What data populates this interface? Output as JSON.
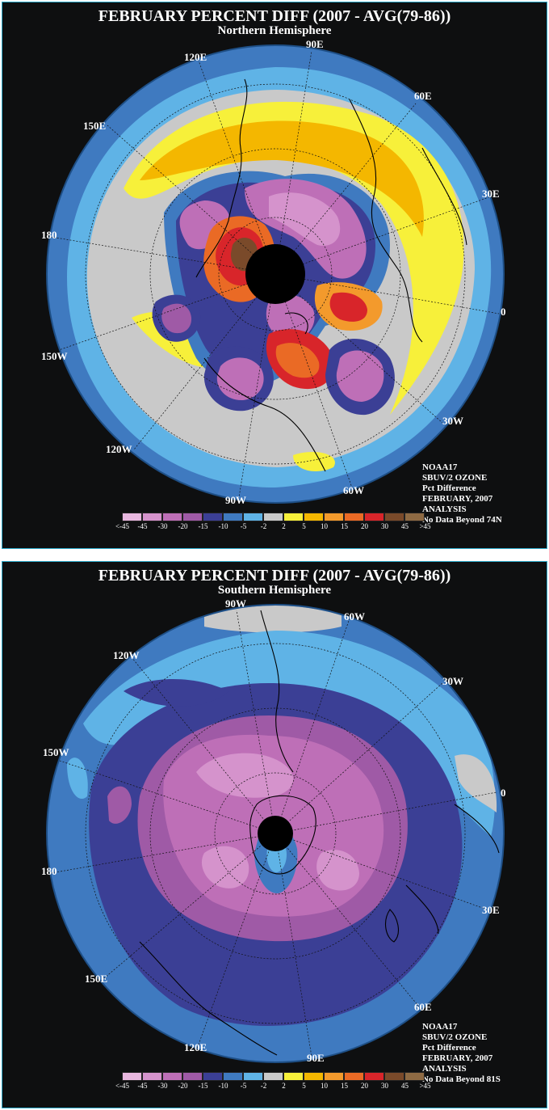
{
  "north": {
    "title": "FEBRUARY PERCENT DIFF (2007 - AVG(79-86))",
    "subtitle": "Northern Hemisphere",
    "lon_labels": {
      "l90e": "90E",
      "l60e": "60E",
      "l30e": "30E",
      "l0": "0",
      "l30w": "30W",
      "l60w": "60W",
      "l90w": "90W",
      "l120w": "120W",
      "l150w": "150W",
      "l180": "180",
      "l150e": "150E",
      "l120e": "120E"
    },
    "info": [
      "NOAA17",
      "SBUV/2 OZONE",
      "Pct Difference",
      "FEBRUARY, 2007",
      "ANALYSIS",
      "No Data Beyond 74N"
    ]
  },
  "south": {
    "title": "FEBRUARY PERCENT DIFF (2007 - AVG(79-86))",
    "subtitle": "Southern Hemisphere",
    "lon_labels": {
      "l90w": "90W",
      "l60w": "60W",
      "l30w": "30W",
      "l0": "0",
      "l30e": "30E",
      "l60e": "60E",
      "l90e": "90E",
      "l120e": "120E",
      "l150e": "150E",
      "l180": "180",
      "l150w": "150W",
      "l120w": "120W"
    },
    "info": [
      "NOAA17",
      "SBUV/2 OZONE",
      "Pct Difference",
      "FEBRUARY, 2007",
      "ANALYSIS",
      "No Data Beyond 81S"
    ]
  },
  "legend": {
    "colors": [
      "#e8b7df",
      "#d593cc",
      "#be6fb7",
      "#9f5aa6",
      "#3b3f95",
      "#3f7ac0",
      "#5fb3e6",
      "#c9c9c9",
      "#f7f03a",
      "#f4b700",
      "#f39a2c",
      "#ea6a25",
      "#d8252a",
      "#7a4a2a",
      "#8e6a43"
    ],
    "labels": [
      "<-45",
      "-45",
      "-30",
      "-20",
      "-15",
      "-10",
      "-5",
      "-2",
      "2",
      "5",
      "10",
      "15",
      "20",
      "30",
      "45",
      ">45"
    ]
  }
}
